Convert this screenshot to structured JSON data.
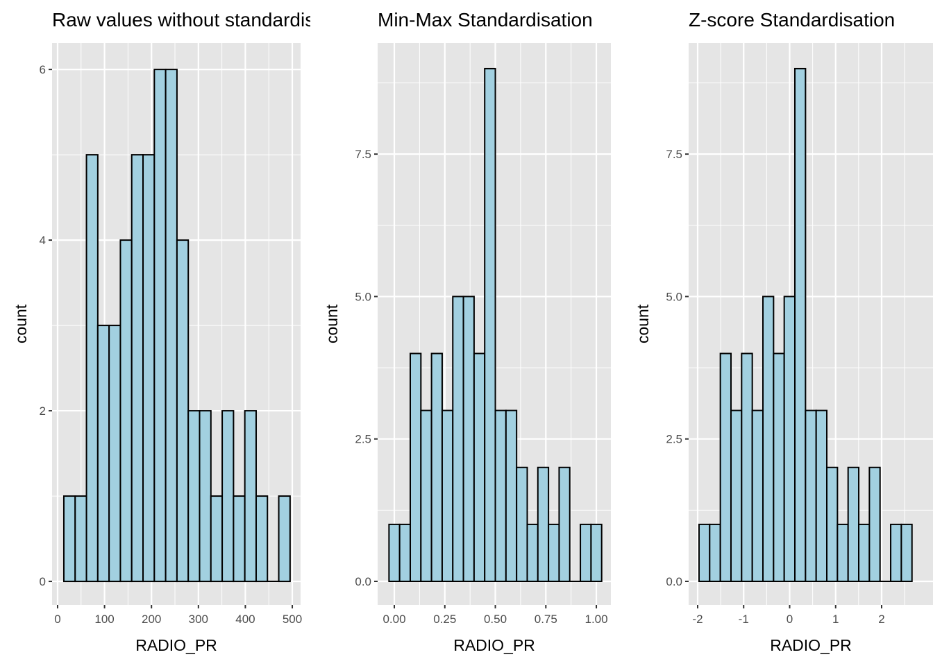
{
  "chart_data": [
    {
      "type": "bar",
      "title": "Raw values without standardisation",
      "xlabel": "RADIO_PR",
      "ylabel": "count",
      "xlim": [
        -11.8,
        517.7
      ],
      "ylim": [
        -0.276,
        6.31
      ],
      "xticks": [
        0,
        100,
        200,
        300,
        400,
        500
      ],
      "xtick_labels": [
        "0",
        "100",
        "200",
        "300",
        "400",
        "500"
      ],
      "yticks": [
        0,
        2,
        4,
        6
      ],
      "ytick_labels": [
        "0",
        "2",
        "4",
        "6"
      ],
      "bin_start": 13.3,
      "bin_width": 24.1,
      "values": [
        1,
        1,
        5,
        3,
        3,
        4,
        5,
        5,
        6,
        6,
        4,
        2,
        2,
        1,
        2,
        1,
        2,
        1,
        0,
        1
      ]
    },
    {
      "type": "bar",
      "title": "Min-Max Standardisation",
      "xlabel": "RADIO_PR",
      "ylabel": "count",
      "xlim": [
        -0.0825,
        1.072
      ],
      "ylim": [
        -0.414,
        9.45
      ],
      "xticks": [
        0,
        0.25,
        0.5,
        0.75,
        1
      ],
      "xtick_labels": [
        "0.00",
        "0.25",
        "0.50",
        "0.75",
        "1.00"
      ],
      "yticks": [
        0,
        2.5,
        5,
        7.5
      ],
      "ytick_labels": [
        "0.0",
        "2.5",
        "5.0",
        "7.5"
      ],
      "bin_start": -0.0263,
      "bin_width": 0.05263,
      "values": [
        1,
        1,
        4,
        3,
        4,
        3,
        5,
        5,
        4,
        9,
        3,
        3,
        2,
        1,
        2,
        1,
        2,
        0,
        1,
        1
      ]
    },
    {
      "type": "bar",
      "title": "Z-score Standardisation",
      "xlabel": "RADIO_PR",
      "ylabel": "count",
      "xlim": [
        -2.196,
        3.117
      ],
      "ylim": [
        -0.414,
        9.45
      ],
      "xticks": [
        -2,
        -1,
        0,
        1,
        2
      ],
      "xtick_labels": [
        "-2",
        "-1",
        "0",
        "1",
        "2"
      ],
      "yticks": [
        0,
        2.5,
        5,
        7.5
      ],
      "ytick_labels": [
        "0.0",
        "2.5",
        "5.0",
        "7.5"
      ],
      "bin_start": -1.97,
      "bin_width": 0.2315,
      "values": [
        1,
        1,
        4,
        3,
        4,
        3,
        5,
        4,
        5,
        9,
        3,
        3,
        2,
        1,
        2,
        1,
        2,
        0,
        1,
        1
      ]
    }
  ],
  "colors": {
    "fill": "#a2d0e0",
    "stroke": "#000000",
    "panel": "#e5e5e5",
    "grid": "#ffffff"
  }
}
